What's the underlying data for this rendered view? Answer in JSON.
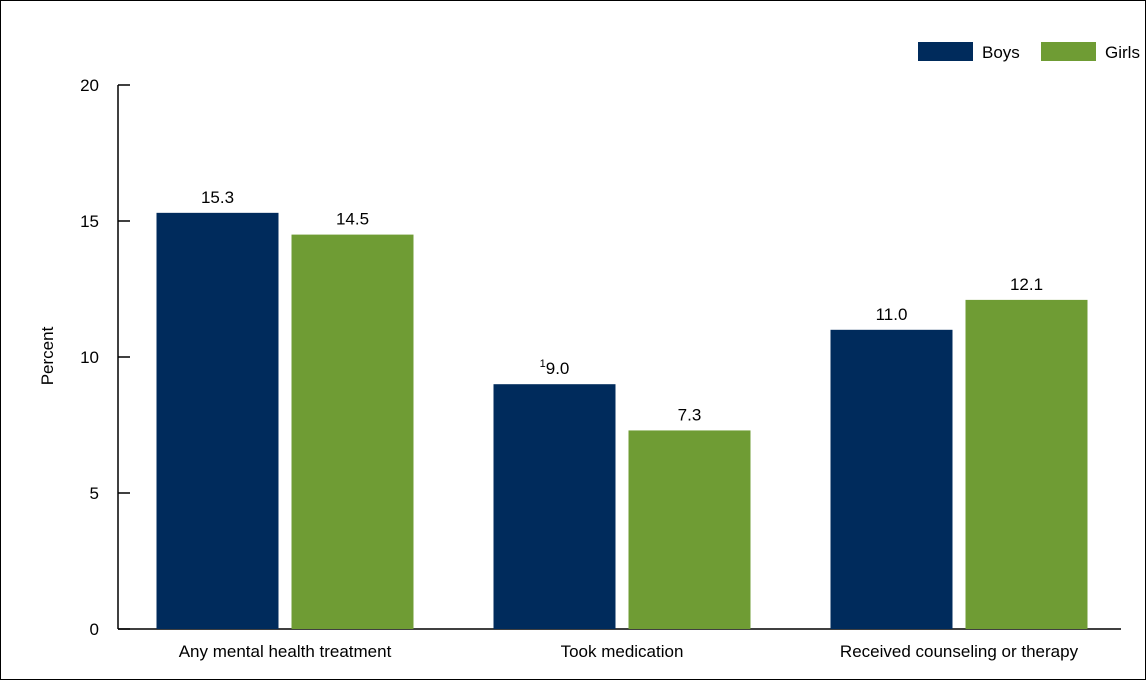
{
  "chart_data": {
    "type": "bar",
    "categories": [
      "Any mental health treatment",
      "Took medication",
      "Received counseling or therapy"
    ],
    "series": [
      {
        "name": "Boys",
        "values": [
          15.3,
          9.0,
          11.0
        ],
        "labels": [
          "15.3",
          "9.0",
          "11.0"
        ],
        "superscripts": [
          "",
          "1",
          ""
        ]
      },
      {
        "name": "Girls",
        "values": [
          14.5,
          7.3,
          12.1
        ],
        "labels": [
          "14.5",
          "7.3",
          "12.1"
        ],
        "superscripts": [
          "",
          "",
          ""
        ]
      }
    ],
    "ylabel": "Percent",
    "ylim": [
      0,
      20
    ],
    "yticks": [
      0,
      5,
      10,
      15,
      20
    ],
    "grid": false,
    "legend": "top-right",
    "colors": {
      "Boys": "#002b5c",
      "Girls": "#6f9c34"
    }
  }
}
